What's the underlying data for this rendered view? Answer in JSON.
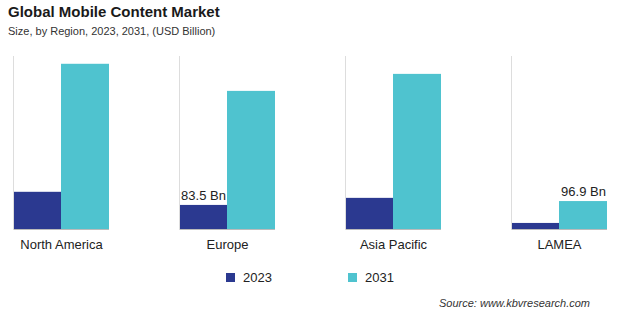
{
  "chart_data": {
    "type": "bar",
    "title": "Global Mobile Content Market",
    "subtitle": "Size, by Region, 2023, 2031, (USD Billion)",
    "caption": "Source: www.kbvresearch.com",
    "categories": [
      "North America",
      "Europe",
      "Asia Pacific",
      "LAMEA"
    ],
    "series": [
      {
        "name": "2023",
        "color": "#2b3990",
        "values": [
          129,
          83.5,
          108,
          21
        ],
        "value_labels": [
          null,
          "83.5 Bn",
          null,
          null
        ]
      },
      {
        "name": "2031",
        "color": "#4fc3cf",
        "values": [
          573,
          479,
          538,
          96.9
        ],
        "value_labels": [
          null,
          null,
          null,
          "96.9 Bn"
        ]
      }
    ],
    "ylim": [
      0,
      600
    ],
    "tick_labels": "x",
    "legend": "bottom"
  }
}
